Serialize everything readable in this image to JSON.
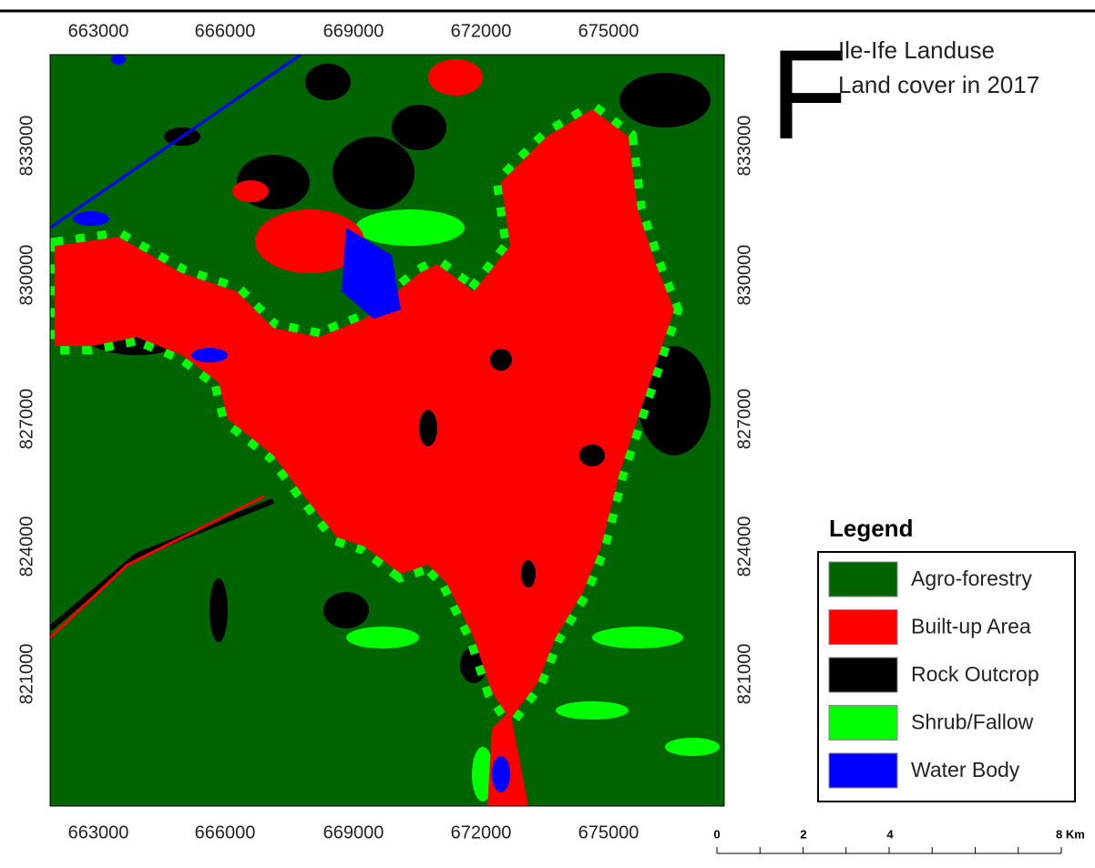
{
  "panel_letter": "F",
  "title": [
    "Ile-Ife Landuse",
    "Land cover in 2017"
  ],
  "x_coordinates": [
    663000,
    666000,
    669000,
    672000,
    675000
  ],
  "y_coordinates": [
    833000,
    830000,
    827000,
    824000,
    821000
  ],
  "legend": {
    "title": "Legend",
    "items": [
      {
        "label": "Agro-forestry",
        "color": "#006400"
      },
      {
        "label": "Built-up Area",
        "color": "#ff0000"
      },
      {
        "label": "Rock Outcrop",
        "color": "#000000"
      },
      {
        "label": "Shrub/Fallow",
        "color": "#00ff00"
      },
      {
        "label": "Water Body",
        "color": "#0000ff"
      }
    ]
  },
  "scale_bar": [
    "0",
    "2",
    "4",
    "8 Km"
  ]
}
